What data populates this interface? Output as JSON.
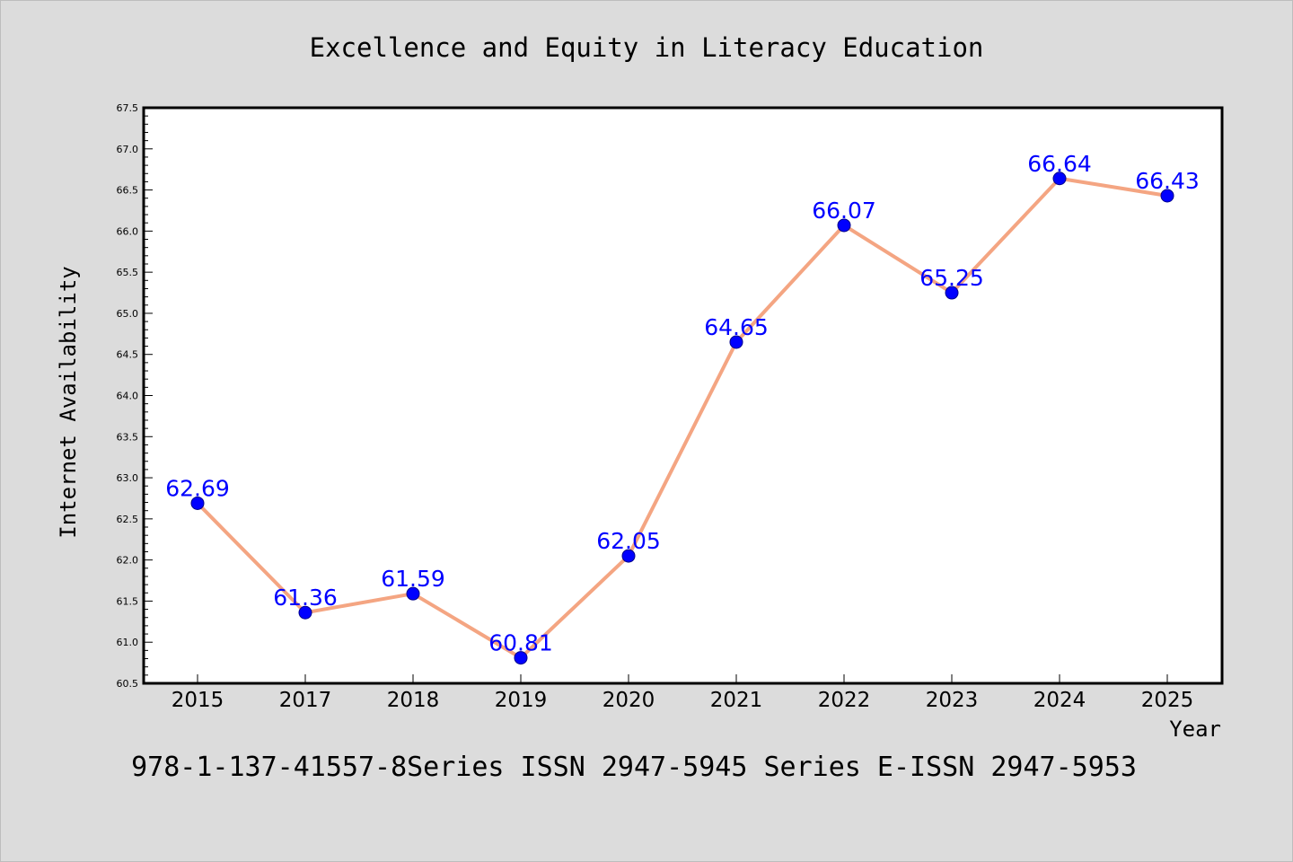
{
  "footer": "978-1-137-41557-8Series ISSN 2947-5945 Series E-ISSN 2947-5953",
  "chart_data": {
    "type": "line",
    "title": "Excellence and Equity in Literacy Education",
    "xlabel": "Year",
    "ylabel": "Internet Availability",
    "categories": [
      "2015",
      "2017",
      "2018",
      "2019",
      "2020",
      "2021",
      "2022",
      "2023",
      "2024",
      "2025"
    ],
    "series": [
      {
        "values": [
          62.69,
          61.36,
          61.59,
          60.81,
          62.05,
          64.65,
          66.07,
          65.25,
          66.64,
          66.43
        ],
        "data_labels": [
          "62.69",
          "61.36",
          "61.59",
          "60.81",
          "62.05",
          "64.65",
          "66.07",
          "65.25",
          "66.64",
          "66.43"
        ]
      }
    ],
    "yticks": [
      "60.5",
      "61.0",
      "61.5",
      "62.0",
      "62.5",
      "63.0",
      "63.5",
      "64.0",
      "64.5",
      "65.0",
      "65.5",
      "66.0",
      "66.5",
      "67.0",
      "67.5"
    ],
    "ylim": [
      60.5,
      67.5
    ],
    "grid": false,
    "legend": "none",
    "colors": {
      "line": "#f4a582",
      "marker_fill": "#0000ff",
      "marker_edge": "#00008b",
      "data_label": "#0000ff",
      "plot_background": "#ffffff",
      "figure_background": "#dcdcdc"
    }
  }
}
